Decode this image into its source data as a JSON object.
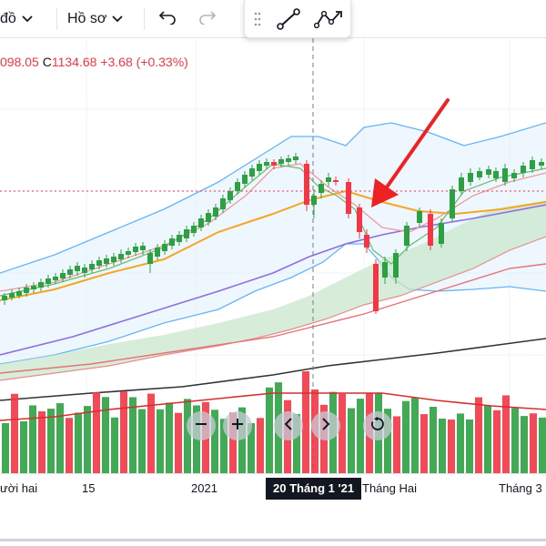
{
  "toolbar": {
    "chart_type_label": "đồ",
    "profile_label": "Hồ sơ",
    "icons": [
      "chevron-down-icon",
      "undo-icon",
      "redo-icon",
      "drag-handle-icon",
      "trend-line-icon",
      "path-icon"
    ]
  },
  "legend": {
    "open_value": "098.05",
    "close_key": "C",
    "close_value": "1134.68",
    "change": "+3.68 (+0.33%)"
  },
  "time_axis": {
    "ticks": [
      "ười hai",
      "15",
      "2021",
      "Tháng Hai",
      "Tháng 3"
    ],
    "crosshair_label": "20 Tháng 1 '21"
  },
  "nav_controls": [
    "zoom-out-icon",
    "zoom-in-icon",
    "scroll-left-icon",
    "scroll-right-icon",
    "reset-icon"
  ],
  "colors": {
    "up": "#26a69a",
    "up_candle": "#2ea043",
    "down": "#f23645",
    "arrow": "#ee2222",
    "bollinger": "#64b5f6",
    "ichimoku_cloud": "#c8e6c9",
    "ma_orange": "#f5a623",
    "ma_purple": "#8e6ee0",
    "ma_black": "#333333"
  }
}
